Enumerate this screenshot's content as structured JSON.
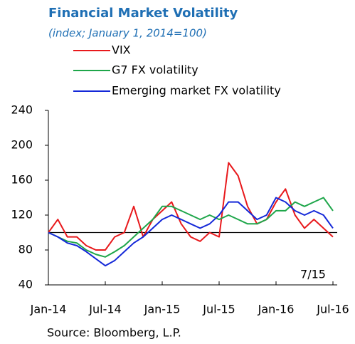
{
  "chart_data": {
    "type": "line",
    "title": "Financial  Market Volatility",
    "subtitle": "(index; January 1, 2014=100)",
    "source": "Source: Bloomberg, L.P.",
    "annotation": "7/15",
    "x": [
      "2014-01",
      "2014-02",
      "2014-03",
      "2014-04",
      "2014-05",
      "2014-06",
      "2014-07",
      "2014-08",
      "2014-09",
      "2014-10",
      "2014-11",
      "2014-12",
      "2015-01",
      "2015-02",
      "2015-03",
      "2015-04",
      "2015-05",
      "2015-06",
      "2015-07",
      "2015-08",
      "2015-09",
      "2015-10",
      "2015-11",
      "2015-12",
      "2016-01",
      "2016-02",
      "2016-03",
      "2016-04",
      "2016-05",
      "2016-06",
      "2016-07"
    ],
    "series": [
      {
        "name": "VIX",
        "color": "#e8191c",
        "values": [
          100,
          115,
          95,
          95,
          85,
          80,
          80,
          95,
          100,
          130,
          95,
          115,
          125,
          135,
          110,
          95,
          90,
          100,
          95,
          180,
          165,
          130,
          110,
          115,
          135,
          150,
          120,
          105,
          115,
          105,
          95
        ]
      },
      {
        "name": "G7 FX volatility",
        "color": "#1ea64a",
        "values": [
          100,
          95,
          90,
          88,
          80,
          75,
          72,
          78,
          85,
          95,
          105,
          115,
          130,
          130,
          125,
          120,
          115,
          120,
          115,
          120,
          115,
          110,
          110,
          115,
          125,
          125,
          135,
          130,
          135,
          140,
          125
        ]
      },
      {
        "name": "Emerging market FX volatility",
        "color": "#1428d8",
        "values": [
          100,
          95,
          88,
          85,
          78,
          70,
          62,
          68,
          78,
          88,
          95,
          105,
          115,
          120,
          115,
          110,
          105,
          110,
          120,
          135,
          135,
          125,
          115,
          120,
          140,
          135,
          125,
          120,
          125,
          120,
          105
        ]
      }
    ],
    "reference_line": 100,
    "xlim": [
      "2014-01",
      "2016-07"
    ],
    "xticks": [
      {
        "value": "2014-01",
        "label": "Jan-14"
      },
      {
        "value": "2014-07",
        "label": "Jul-14"
      },
      {
        "value": "2015-01",
        "label": "Jan-15"
      },
      {
        "value": "2015-07",
        "label": "Jul-15"
      },
      {
        "value": "2016-01",
        "label": "Jan-16"
      },
      {
        "value": "2016-07",
        "label": "Jul-16"
      }
    ],
    "ylim": [
      40,
      240
    ],
    "yticks": [
      40,
      80,
      120,
      160,
      200,
      240
    ]
  }
}
